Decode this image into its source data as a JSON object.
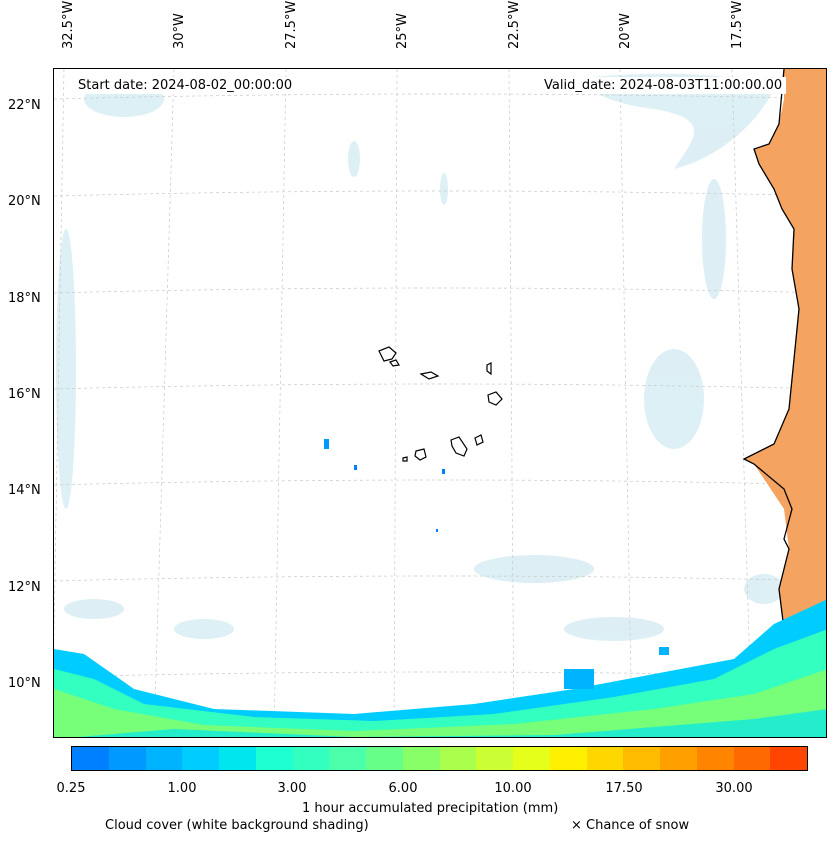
{
  "map": {
    "start_date": "Start date: 2024-08-02_00:00:00",
    "valid_date": "Valid_date: 2024-08-03T11:00:00.00",
    "lon_labels": [
      "32.5°W",
      "30°W",
      "27.5°W",
      "25°W",
      "22.5°W",
      "20°W",
      "17.5°W"
    ],
    "lat_labels": [
      "22°N",
      "20°N",
      "18°N",
      "16°N",
      "14°N",
      "12°N",
      "10°N"
    ],
    "colors": {
      "land_dry": "#f4a460",
      "cloud": "#cfe9f2",
      "coast": "#000000",
      "grid": "#c8c8c8"
    }
  },
  "colorbar": {
    "colors": [
      "#0080ff",
      "#0099ff",
      "#00b3ff",
      "#00ccff",
      "#00e6ee",
      "#1effd2",
      "#33ffc0",
      "#4cffaa",
      "#66ff88",
      "#88ff66",
      "#aaff4c",
      "#ccff33",
      "#e6ff1a",
      "#fff000",
      "#ffd700",
      "#ffbb00",
      "#ffa000",
      "#ff8500",
      "#ff6a00",
      "#ff4500"
    ],
    "tick_labels": [
      "0.25",
      "1.00",
      "3.00",
      "6.00",
      "10.00",
      "17.50",
      "30.00"
    ],
    "title": "1 hour accumulated precipitation (mm)"
  },
  "legend": {
    "cloud_cover": "Cloud cover (white background shading)",
    "snow": "× Chance of snow"
  }
}
